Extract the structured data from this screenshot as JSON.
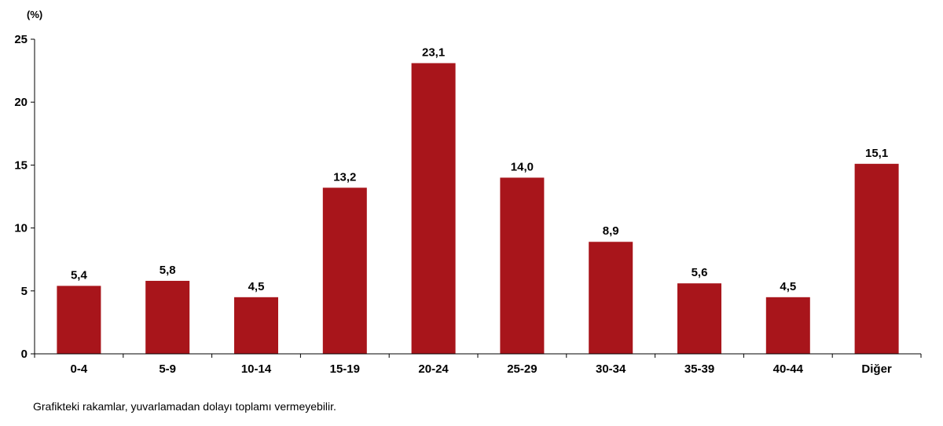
{
  "colors": {
    "bar": "#A8151B",
    "axis": "#000000"
  },
  "chart_data": {
    "type": "bar",
    "ylabel": "(%)",
    "categories": [
      "0-4",
      "5-9",
      "10-14",
      "15-19",
      "20-24",
      "25-29",
      "30-34",
      "35-39",
      "40-44",
      "Diğer"
    ],
    "values": [
      5.4,
      5.8,
      4.5,
      13.2,
      23.1,
      14.0,
      8.9,
      5.6,
      4.5,
      15.1
    ],
    "data_labels": [
      "5,4",
      "5,8",
      "4,5",
      "13,2",
      "23,1",
      "14,0",
      "8,9",
      "5,6",
      "4,5",
      "15,1"
    ],
    "yticks": [
      0,
      5,
      10,
      15,
      20,
      25
    ],
    "ylim": [
      0,
      25
    ],
    "grid": false,
    "legend": "none"
  },
  "footnote": "Grafikteki rakamlar, yuvarlamadan dolayı toplamı vermeyebilir."
}
